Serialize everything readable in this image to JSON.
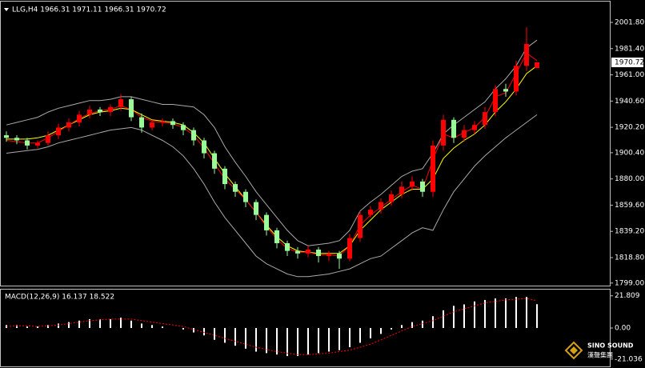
{
  "chart_data": [
    {
      "type": "candlestick",
      "label": "LLG,H4  1966.31 1971.11 1966.31 1970.72",
      "last_price": 1970.72,
      "up_color": "#ff0000",
      "down_color": "#98fb98",
      "open": [
        1914,
        1912,
        1910,
        1906,
        1908,
        1914,
        1920,
        1924,
        1930,
        1934,
        1932,
        1936,
        1942,
        1928,
        1920,
        1924,
        1925,
        1922,
        1918,
        1910,
        1900,
        1888,
        1876,
        1870,
        1862,
        1852,
        1840,
        1830,
        1824,
        1822,
        1825,
        1820,
        1822,
        1818,
        1834,
        1852,
        1856,
        1862,
        1868,
        1874,
        1878,
        1870,
        1906,
        1926,
        1912,
        1918,
        1922,
        1932,
        1950,
        1948,
        1968,
        1966.31
      ],
      "high": [
        1917,
        1914,
        1912,
        1910,
        1917,
        1923,
        1927,
        1933,
        1937,
        1936,
        1938,
        1946,
        1944,
        1931,
        1926,
        1927,
        1927,
        1924,
        1920,
        1912,
        1902,
        1890,
        1878,
        1872,
        1864,
        1854,
        1842,
        1832,
        1827,
        1828,
        1827,
        1824,
        1824,
        1837,
        1855,
        1859,
        1865,
        1871,
        1878,
        1882,
        1880,
        1910,
        1930,
        1928,
        1922,
        1925,
        1936,
        1953,
        1954,
        1972,
        1998,
        1971.11
      ],
      "low": [
        1909,
        1907,
        1903,
        1904,
        1906,
        1911,
        1917,
        1921,
        1927,
        1929,
        1929,
        1933,
        1925,
        1916,
        1918,
        1921,
        1919,
        1914,
        1906,
        1896,
        1884,
        1872,
        1866,
        1858,
        1848,
        1836,
        1826,
        1820,
        1818,
        1819,
        1815,
        1816,
        1810,
        1816,
        1831,
        1850,
        1853,
        1859,
        1865,
        1871,
        1866,
        1866,
        1902,
        1908,
        1909,
        1915,
        1919,
        1929,
        1944,
        1945,
        1964,
        1966.31
      ],
      "close": [
        1912,
        1910,
        1906,
        1908,
        1914,
        1920,
        1924,
        1930,
        1934,
        1932,
        1936,
        1942,
        1928,
        1920,
        1924,
        1925,
        1922,
        1918,
        1910,
        1900,
        1888,
        1876,
        1870,
        1862,
        1852,
        1840,
        1830,
        1824,
        1822,
        1825,
        1820,
        1822,
        1818,
        1834,
        1852,
        1856,
        1862,
        1868,
        1874,
        1878,
        1870,
        1906,
        1926,
        1912,
        1918,
        1922,
        1932,
        1950,
        1948,
        1968,
        1985,
        1970.72
      ],
      "series": [
        {
          "color": "#a9a9a9",
          "values": [
            1922,
            1924,
            1926,
            1928,
            1932,
            1935,
            1937,
            1939,
            1941,
            1941,
            1942,
            1944,
            1944,
            1942,
            1940,
            1938,
            1938,
            1937,
            1936,
            1930,
            1920,
            1905,
            1893,
            1882,
            1870,
            1860,
            1850,
            1840,
            1832,
            1828,
            1829,
            1830,
            1832,
            1840,
            1855,
            1862,
            1868,
            1875,
            1882,
            1886,
            1888,
            1900,
            1915,
            1922,
            1928,
            1934,
            1940,
            1950,
            1958,
            1968,
            1982,
            1988
          ]
        },
        {
          "color": "#a9a9a9",
          "values": [
            1900,
            1901,
            1902,
            1903,
            1905,
            1908,
            1910,
            1912,
            1914,
            1916,
            1918,
            1919,
            1920,
            1918,
            1914,
            1910,
            1905,
            1898,
            1888,
            1876,
            1862,
            1850,
            1840,
            1830,
            1820,
            1814,
            1810,
            1806,
            1804,
            1804,
            1805,
            1806,
            1808,
            1810,
            1814,
            1818,
            1820,
            1826,
            1832,
            1838,
            1842,
            1840,
            1856,
            1870,
            1880,
            1890,
            1898,
            1905,
            1912,
            1918,
            1924,
            1930
          ]
        },
        {
          "color": "#ffff00",
          "values": [
            1911,
            1911,
            1911,
            1912,
            1914,
            1918,
            1922,
            1926,
            1930,
            1932,
            1933,
            1935,
            1934,
            1930,
            1926,
            1925,
            1924,
            1922,
            1916,
            1908,
            1896,
            1884,
            1874,
            1864,
            1854,
            1844,
            1835,
            1828,
            1824,
            1823,
            1822,
            1822,
            1822,
            1828,
            1840,
            1848,
            1856,
            1862,
            1868,
            1872,
            1872,
            1880,
            1896,
            1904,
            1910,
            1915,
            1922,
            1932,
            1940,
            1950,
            1962,
            1968
          ]
        },
        {
          "color": "#ff0000",
          "values": [
            1910,
            1909,
            1908,
            1908,
            1912,
            1917,
            1922,
            1927,
            1931,
            1933,
            1934,
            1937,
            1934,
            1928,
            1925,
            1924,
            1923,
            1920,
            1914,
            1904,
            1892,
            1880,
            1872,
            1864,
            1854,
            1843,
            1833,
            1826,
            1823,
            1823,
            1821,
            1821,
            1820,
            1828,
            1844,
            1852,
            1858,
            1864,
            1870,
            1875,
            1872,
            1895,
            1915,
            1912,
            1916,
            1920,
            1928,
            1944,
            1947,
            1962,
            1978,
            1972
          ]
        }
      ],
      "ylim": [
        1797,
        2018
      ],
      "yticks": [
        {
          "value": 2001.8,
          "label": "2001.80"
        },
        {
          "value": 1981.4,
          "label": "1981.40"
        },
        {
          "value": 1961,
          "label": "1961.00"
        },
        {
          "value": 1940.6,
          "label": "1940.60"
        },
        {
          "value": 1920.2,
          "label": "1920.20"
        },
        {
          "value": 1900.4,
          "label": "1900.40"
        },
        {
          "value": 1880,
          "label": "1880.00"
        },
        {
          "value": 1859.6,
          "label": "1859.60"
        },
        {
          "value": 1839.2,
          "label": "1839.20"
        },
        {
          "value": 1818.8,
          "label": "1818.80"
        },
        {
          "value": 1799,
          "label": "1799.00"
        }
      ]
    },
    {
      "type": "macd",
      "label": "MACD(12,26,9) 16.137 18.522",
      "color": "#ffffff",
      "signal_color": "#ff0000",
      "values": [
        2,
        2,
        1,
        1,
        2,
        3,
        4,
        5,
        6,
        6,
        6,
        7,
        5,
        3,
        2,
        1,
        0,
        -1,
        -3,
        -5,
        -8,
        -10,
        -12,
        -14,
        -16,
        -17,
        -18,
        -19,
        -19,
        -18,
        -17,
        -16,
        -15,
        -13,
        -10,
        -7,
        -4,
        -1,
        2,
        4,
        5,
        8,
        12,
        15,
        16,
        18,
        19,
        20,
        20,
        21,
        21,
        16.137
      ],
      "signal": [
        1,
        1.5,
        1.5,
        1,
        1.5,
        2,
        3,
        4,
        5,
        5.5,
        6,
        6,
        6,
        5,
        4,
        3,
        2,
        1,
        -1,
        -3,
        -5,
        -7,
        -9,
        -11,
        -13,
        -14.5,
        -16,
        -17,
        -18,
        -18,
        -17.5,
        -17,
        -16,
        -15,
        -13,
        -11,
        -8,
        -5,
        -2,
        1,
        3,
        5,
        8,
        11,
        13,
        15,
        17,
        18,
        19,
        19.5,
        20,
        18.522
      ],
      "ylim": [
        -26,
        26
      ],
      "yticks": [
        21.809,
        {
          "value": 0,
          "label": "0.00"
        },
        -21.036
      ]
    }
  ],
  "logo": {
    "name": "SINO SOUND",
    "subtitle": "漢聲集團"
  }
}
